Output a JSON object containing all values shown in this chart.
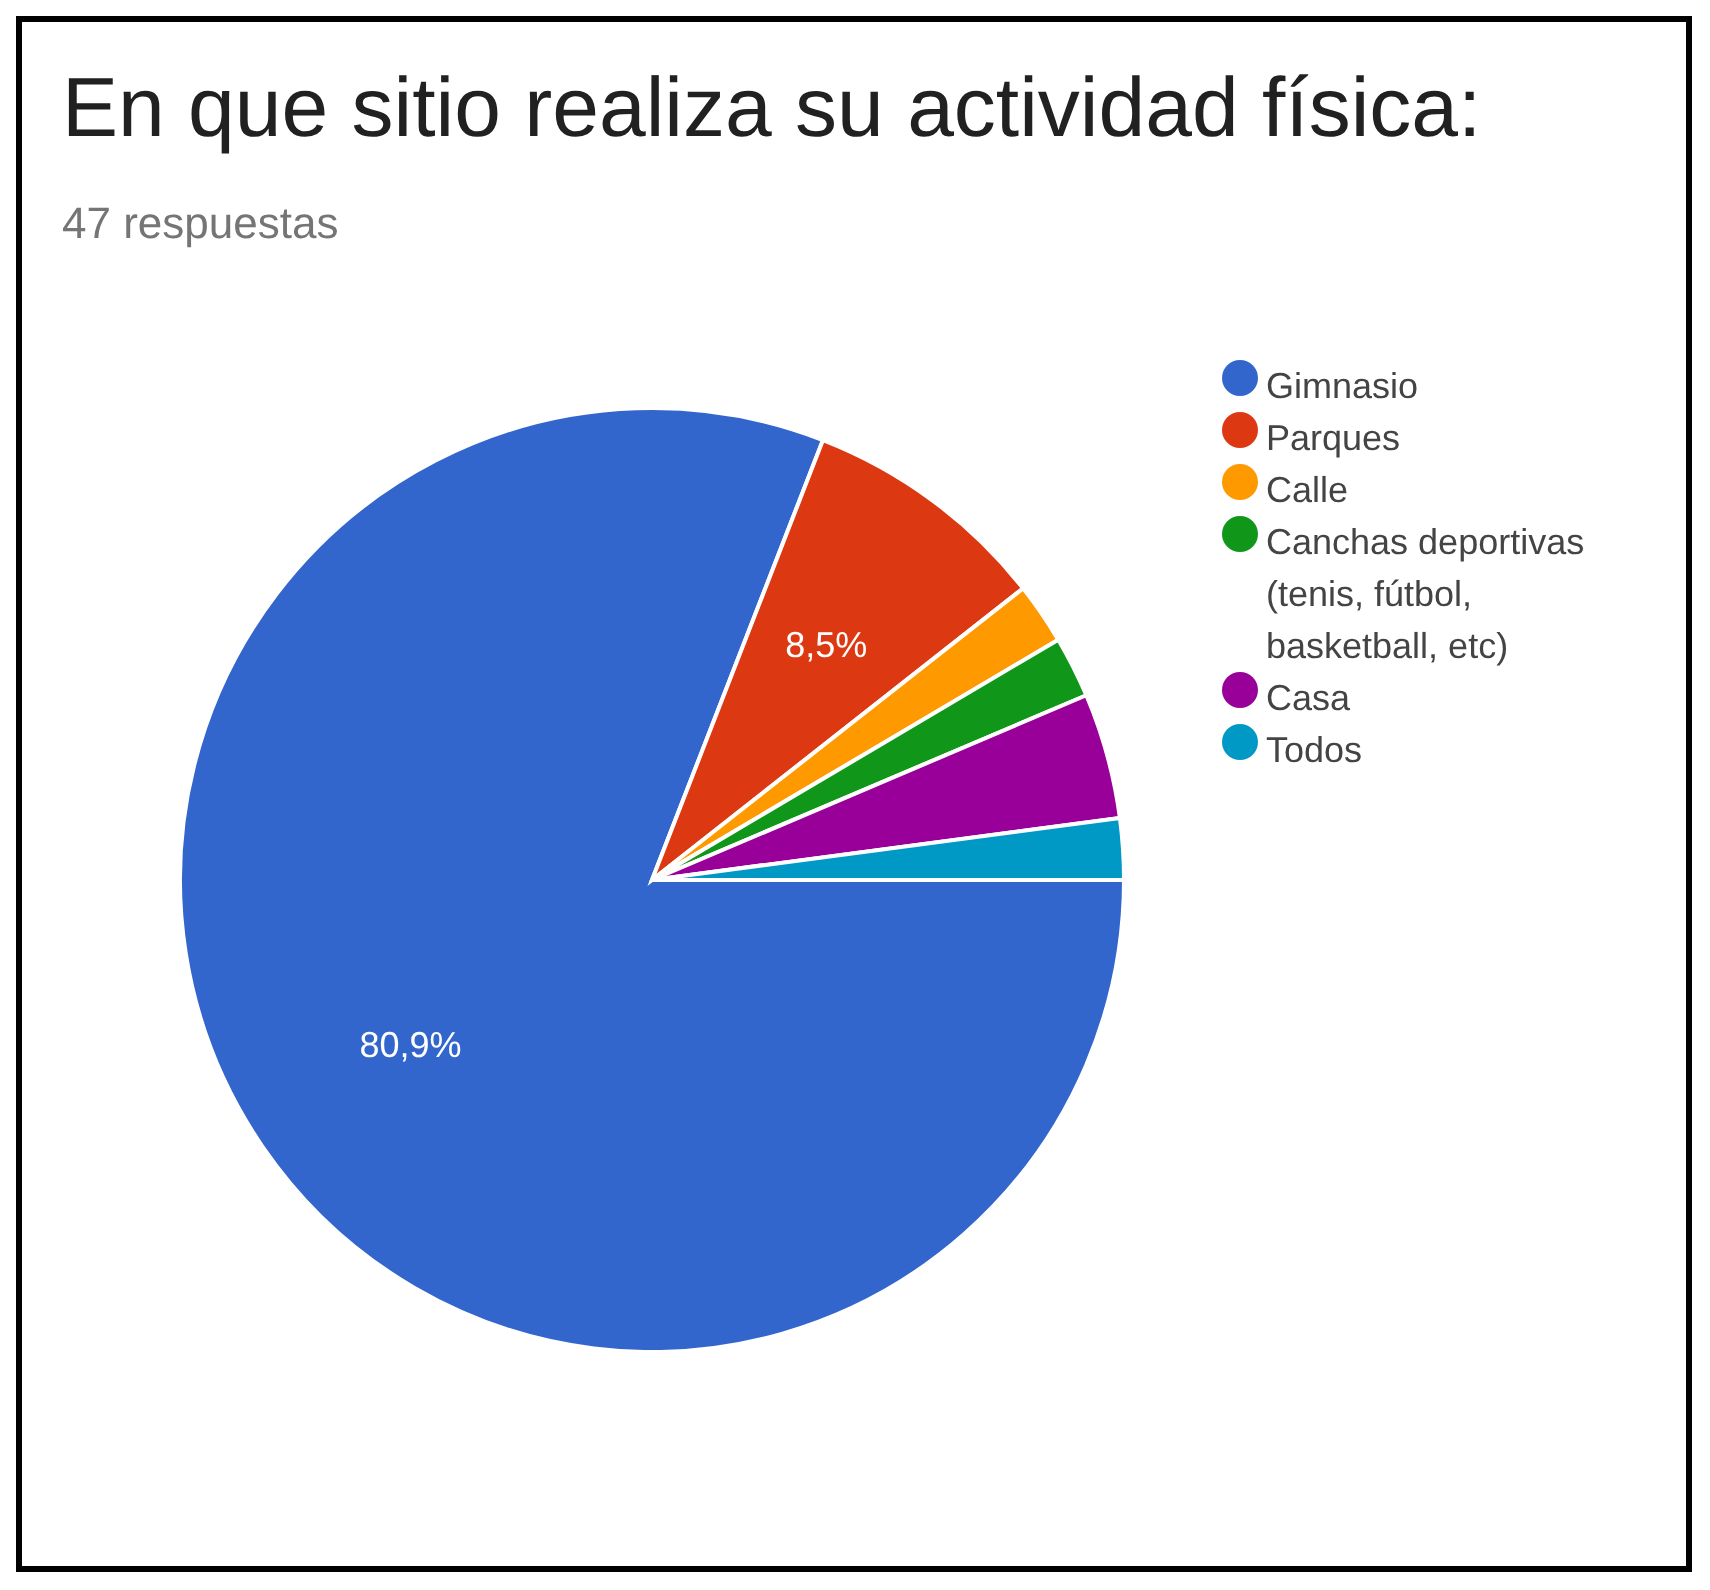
{
  "chart_data": {
    "type": "pie",
    "title": "En que sitio realiza su actividad física:",
    "subtitle": "47 respuestas",
    "categories": [
      "Gimnasio",
      "Parques",
      "Calle",
      "Canchas deportivas (tenis, fútbol, basketball, etc)",
      "Casa",
      "Todos"
    ],
    "values": [
      80.9,
      8.5,
      2.1,
      2.1,
      4.3,
      2.1
    ],
    "colors": [
      "#3366cc",
      "#dc3912",
      "#ff9900",
      "#109618",
      "#990099",
      "#0099c6"
    ],
    "value_labels": [
      "80,9%",
      "8,5%",
      null,
      null,
      null,
      null
    ],
    "legend": "right"
  }
}
